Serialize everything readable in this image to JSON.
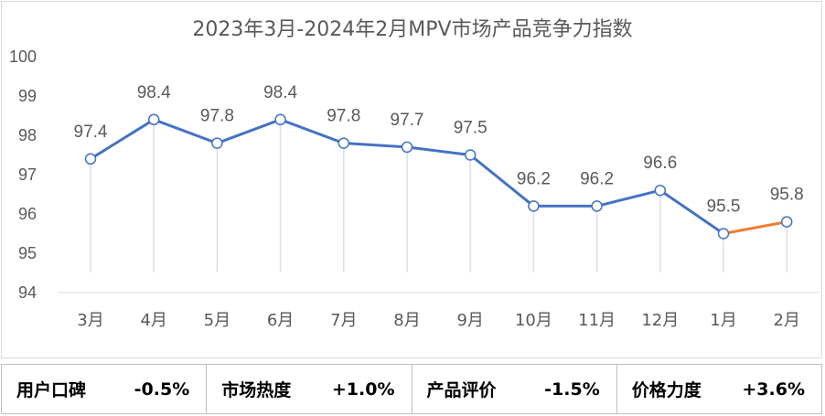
{
  "chart_data": {
    "type": "line",
    "title": "2023年3月-2024年2月MPV市场产品竞争力指数",
    "categories": [
      "3月",
      "4月",
      "5月",
      "6月",
      "7月",
      "8月",
      "9月",
      "10月",
      "11月",
      "12月",
      "1月",
      "2月"
    ],
    "values": [
      97.4,
      98.4,
      97.8,
      98.4,
      97.8,
      97.7,
      97.5,
      96.2,
      96.2,
      96.6,
      95.5,
      95.8
    ],
    "y_ticks": [
      "94",
      "95",
      "96",
      "97",
      "98",
      "99",
      "100"
    ],
    "ylim": [
      94,
      100
    ],
    "grid": false,
    "colors": {
      "main_line": "#4472c4",
      "last_segment": "#ed7d31",
      "drop_line": "#d6e0f0",
      "label": "#595959"
    }
  },
  "metrics": [
    {
      "label": "用户口碑",
      "value": "-0.5%"
    },
    {
      "label": "市场热度",
      "value": "+1.0%"
    },
    {
      "label": "产品评价",
      "value": "-1.5%"
    },
    {
      "label": "价格力度",
      "value": "+3.6%"
    }
  ]
}
